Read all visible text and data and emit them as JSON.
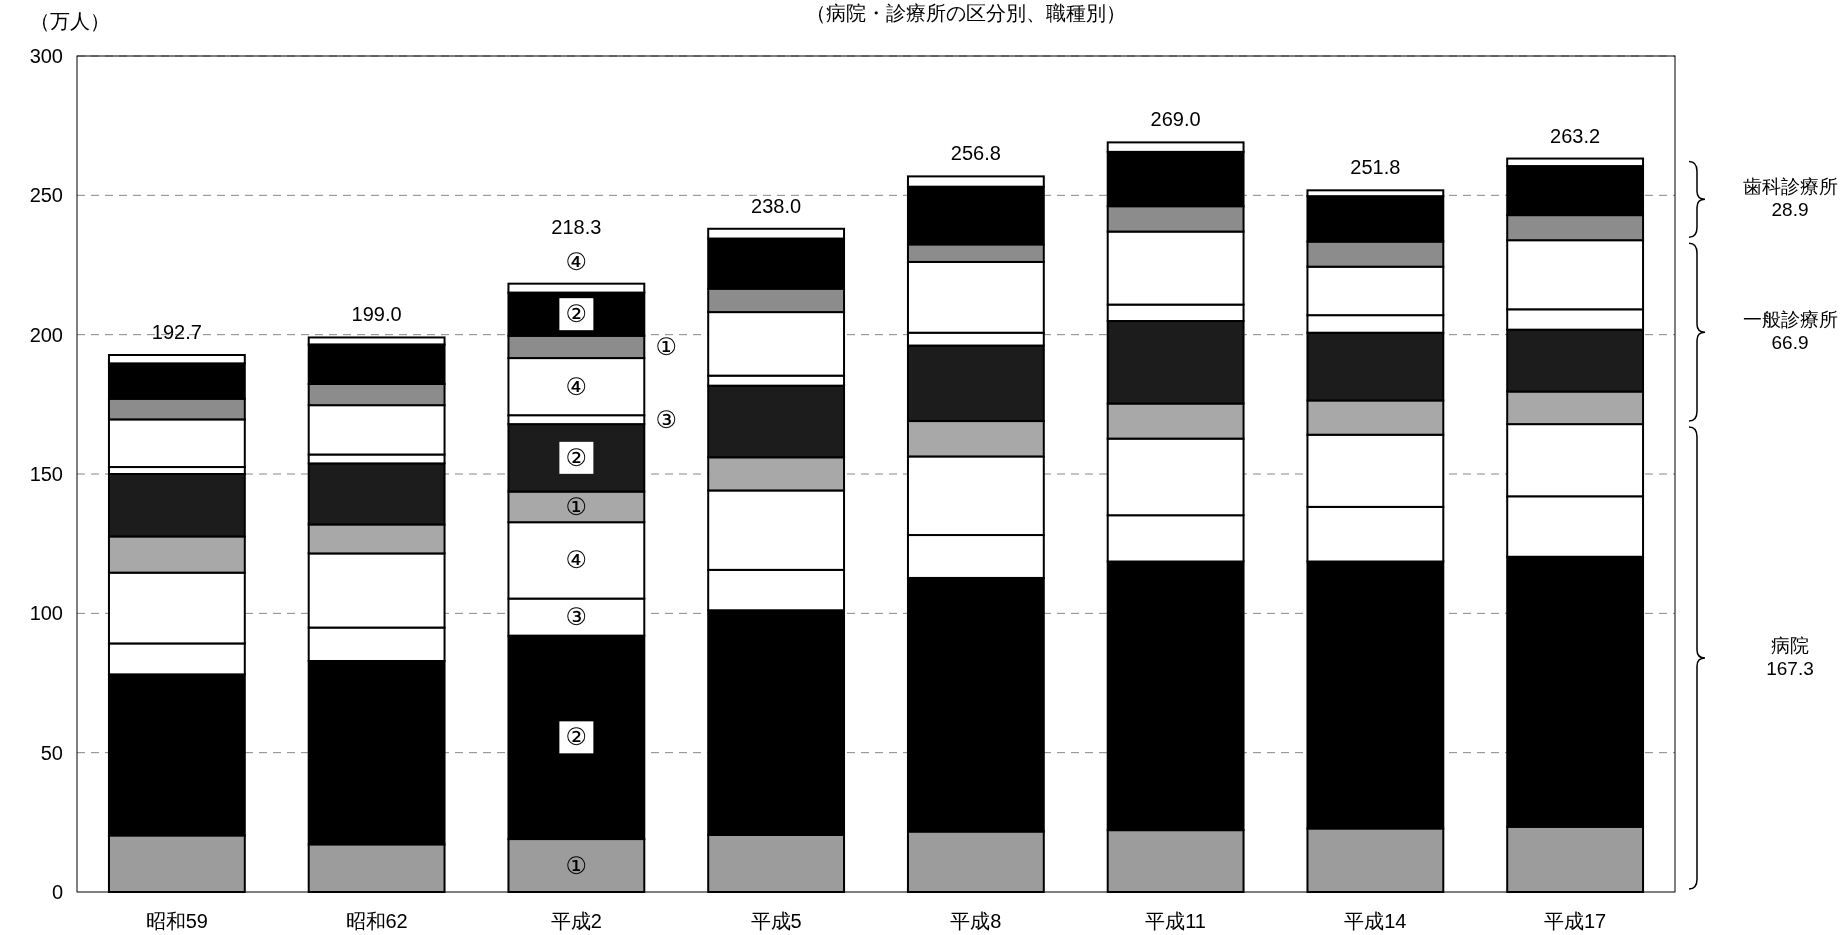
{
  "chart_data": {
    "type": "bar",
    "stacked": true,
    "subtitle": "（病院・診療所の区分別、職種別）",
    "ylabel": "（万人）",
    "categories": [
      "昭和59",
      "昭和62",
      "平成2",
      "平成5",
      "平成8",
      "平成11",
      "平成14",
      "平成17"
    ],
    "series": [
      {
        "color": "#9c9c9c",
        "values": [
          20.3,
          17.1,
          19.0,
          20.5,
          21.7,
          22.2,
          22.8,
          23.4
        ]
      },
      {
        "color": "#000000",
        "values": [
          57.8,
          65.8,
          73.0,
          80.6,
          91.0,
          96.4,
          95.8,
          96.9
        ]
      },
      {
        "color": "#ffffff",
        "values": [
          11.1,
          12.0,
          13.3,
          14.5,
          15.4,
          16.6,
          19.6,
          21.7
        ]
      },
      {
        "color": "#ffffff",
        "values": [
          25.4,
          26.6,
          27.4,
          28.5,
          28.2,
          27.5,
          25.9,
          25.9
        ]
      },
      {
        "color": "#a8a8a8",
        "values": [
          13.0,
          10.4,
          11.0,
          11.9,
          12.7,
          12.6,
          12.3,
          11.7
        ]
      },
      {
        "color": "#1c1c1c",
        "values": [
          22.4,
          21.9,
          24.2,
          25.7,
          27.1,
          29.6,
          24.3,
          22.2
        ]
      },
      {
        "color": "#ffffff",
        "values": [
          2.5,
          3.2,
          3.2,
          3.6,
          4.6,
          5.9,
          6.3,
          7.3
        ]
      },
      {
        "color": "#ffffff",
        "values": [
          17.1,
          17.7,
          20.5,
          22.8,
          25.4,
          26.2,
          17.4,
          24.8
        ]
      },
      {
        "color": "#8c8c8c",
        "values": [
          7.4,
          7.6,
          8.0,
          8.4,
          6.3,
          9.1,
          9.0,
          9.0
        ]
      },
      {
        "color": "#000000",
        "values": [
          12.7,
          14.2,
          15.5,
          18.0,
          20.7,
          19.5,
          16.3,
          17.6
        ]
      },
      {
        "color": "#ffffff",
        "values": [
          3.0,
          2.5,
          3.2,
          3.5,
          3.7,
          3.4,
          2.1,
          2.7
        ]
      }
    ],
    "totals": [
      "192.7",
      "199.0",
      "218.3",
      "238.0",
      "256.8",
      "269.0",
      "251.8",
      "263.2"
    ],
    "ylim": [
      0,
      300
    ],
    "yticks": [
      0,
      50,
      100,
      150,
      200,
      250,
      300
    ],
    "grid": "y",
    "annotations": [
      "①",
      "②",
      "③",
      "④",
      "①",
      "②",
      "③",
      "④",
      "①",
      "②",
      "④",
      "歯科診療所\n28.9",
      "一般診療所\n66.9",
      "病院\n167.3"
    ]
  }
}
